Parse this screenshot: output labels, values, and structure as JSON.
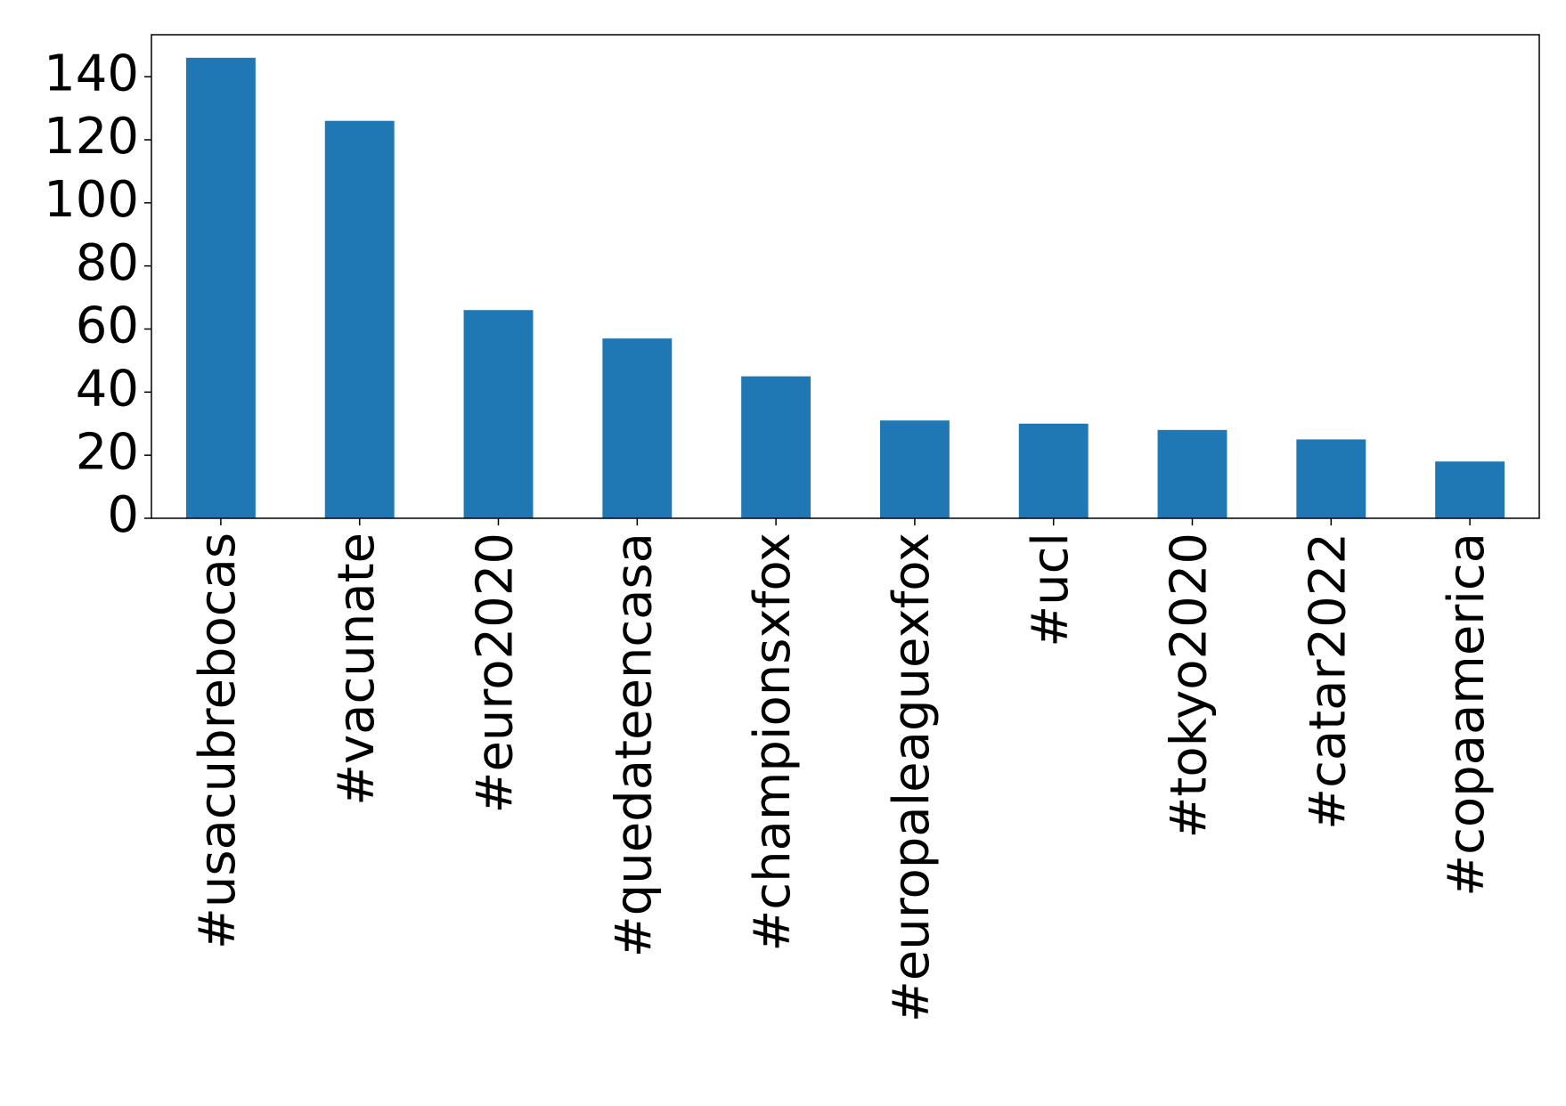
{
  "chart_data": {
    "type": "bar",
    "categories": [
      "#usacubrebocas",
      "#vacunate",
      "#euro2020",
      "#quedateencasa",
      "#championsxfox",
      "#europaleaguexfox",
      "#ucl",
      "#tokyo2020",
      "#catar2022",
      "#copaamerica"
    ],
    "values": [
      146,
      126,
      66,
      57,
      45,
      31,
      30,
      28,
      25,
      18
    ],
    "color": "#1f77b4",
    "ylim": [
      0,
      153.3
    ],
    "yticks": [
      0,
      20,
      40,
      60,
      80,
      100,
      120,
      140
    ],
    "grid": false
  }
}
